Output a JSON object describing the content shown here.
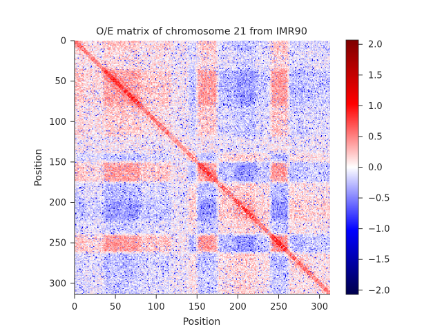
{
  "chart_data": {
    "type": "heatmap",
    "title": "O/E matrix of chromosome 21 from IMR90",
    "xlabel": "Position",
    "ylabel": "Position",
    "xlim": [
      0,
      313
    ],
    "ylim": [
      313,
      0
    ],
    "xticks": [
      0,
      50,
      100,
      150,
      200,
      250,
      300
    ],
    "yticks": [
      0,
      50,
      100,
      150,
      200,
      250,
      300
    ],
    "matrix_size": 313,
    "colormap": "seismic",
    "colorbar": {
      "vmin": -2.07,
      "vmax": 2.07,
      "ticks": [
        -2.0,
        -1.5,
        -1.0,
        -0.5,
        0.0,
        0.5,
        1.0,
        1.5,
        2.0
      ],
      "tick_labels": [
        "−2.0",
        "−1.5",
        "−1.0",
        "−0.5",
        "0.0",
        "0.5",
        "1.0",
        "1.5",
        "2.0"
      ]
    },
    "compartment_profile": [
      {
        "start": 0,
        "end": 12,
        "value": 0.35
      },
      {
        "start": 12,
        "end": 36,
        "value": 0.2
      },
      {
        "start": 36,
        "end": 80,
        "value": 0.55
      },
      {
        "start": 80,
        "end": 118,
        "value": 0.3
      },
      {
        "start": 118,
        "end": 140,
        "value": 0.05
      },
      {
        "start": 140,
        "end": 150,
        "value": -0.35
      },
      {
        "start": 150,
        "end": 175,
        "value": 0.55
      },
      {
        "start": 175,
        "end": 197,
        "value": -0.35
      },
      {
        "start": 197,
        "end": 222,
        "value": -0.55
      },
      {
        "start": 222,
        "end": 240,
        "value": -0.25
      },
      {
        "start": 240,
        "end": 262,
        "value": 0.6
      },
      {
        "start": 262,
        "end": 282,
        "value": -0.35
      },
      {
        "start": 282,
        "end": 313,
        "value": -0.25
      }
    ]
  }
}
